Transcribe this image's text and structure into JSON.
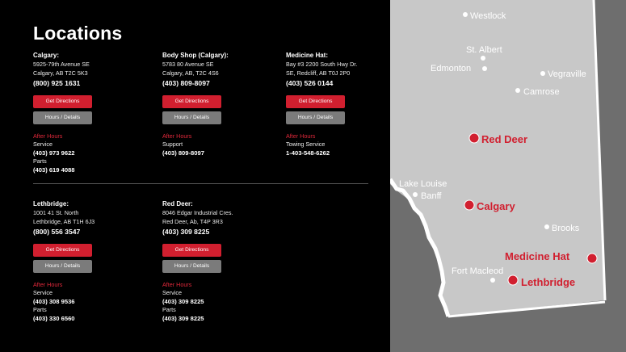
{
  "page": {
    "title": "Locations"
  },
  "buttons": {
    "directions": "Get Directions",
    "hours": "Hours / Details"
  },
  "after_hours_label": "After Hours",
  "locations": [
    {
      "name": "Calgary:",
      "address1": "5925-79th Avenue SE",
      "address2": "Calgary, AB T2C 5K3",
      "phone": "(800) 925 1631",
      "ah_label1": "Service",
      "ah_phone1": "(403) 973 9622",
      "ah_label2": "Parts",
      "ah_phone2": "(403) 619 4088"
    },
    {
      "name": "Body Shop (Calgary):",
      "address1": "5783 80 Avenue SE",
      "address2": "Calgary, AB, T2C 4S6",
      "phone": "(403) 809-8097",
      "ah_label1": "Support",
      "ah_phone1": "(403) 809-8097"
    },
    {
      "name": "Medicine Hat:",
      "address1": "Bay #3 2200 South Hwy Dr.",
      "address2": "SE, Redcliff, AB T0J 2P0",
      "phone": "(403) 526 0144",
      "ah_label1": "Towing Service",
      "ah_phone1": "1-403-548-6262"
    },
    {
      "name": "Lethbridge:",
      "address1": "1001 41 St. North",
      "address2": "Lethbridge, AB T1H 6J3",
      "phone": "(800) 556 3547",
      "ah_label1": "Service",
      "ah_phone1": "(403) 308 9536",
      "ah_label2": "Parts",
      "ah_phone2": "(403) 330 6560"
    },
    {
      "name": "Red Deer:",
      "address1": "8046 Edgar Industrial Cres.",
      "address2": "Red Deer, Ab, T4P 3R3",
      "phone": "(403) 309 8225",
      "ah_label1": "Service",
      "ah_phone1": "(403) 309 8225",
      "ah_label2": "Parts",
      "ah_phone2": "(403) 309 8225"
    }
  ],
  "map": {
    "colors": {
      "province": "#c8c8c8",
      "outside": "#6e6e6e",
      "accent": "#d11f2f",
      "city_label": "#ffffff"
    },
    "cities": [
      "Westlock",
      "St. Albert",
      "Edmonton",
      "Vegraville",
      "Camrose",
      "Lake Louise",
      "Banff",
      "Brooks",
      "Fort Macleod"
    ],
    "highlighted": [
      "Red Deer",
      "Calgary",
      "Medicine Hat",
      "Lethbridge"
    ]
  }
}
